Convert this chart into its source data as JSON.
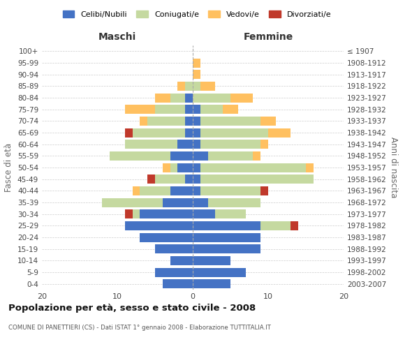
{
  "age_groups": [
    "0-4",
    "5-9",
    "10-14",
    "15-19",
    "20-24",
    "25-29",
    "30-34",
    "35-39",
    "40-44",
    "45-49",
    "50-54",
    "55-59",
    "60-64",
    "65-69",
    "70-74",
    "75-79",
    "80-84",
    "85-89",
    "90-94",
    "95-99",
    "100+"
  ],
  "birth_years": [
    "2003-2007",
    "1998-2002",
    "1993-1997",
    "1988-1992",
    "1983-1987",
    "1978-1982",
    "1973-1977",
    "1968-1972",
    "1963-1967",
    "1958-1962",
    "1953-1957",
    "1948-1952",
    "1943-1947",
    "1938-1942",
    "1933-1937",
    "1928-1932",
    "1923-1927",
    "1918-1922",
    "1913-1917",
    "1908-1912",
    "≤ 1907"
  ],
  "colors": {
    "celibi": "#4472C4",
    "coniugati": "#c5d9a0",
    "vedovi": "#ffc060",
    "divorziati": "#c0392b"
  },
  "males": {
    "celibi": [
      4,
      5,
      3,
      5,
      7,
      9,
      7,
      4,
      3,
      1,
      2,
      3,
      2,
      1,
      1,
      1,
      1,
      0,
      0,
      0,
      0
    ],
    "coniugati": [
      0,
      0,
      0,
      0,
      0,
      0,
      1,
      8,
      4,
      4,
      1,
      8,
      7,
      7,
      5,
      4,
      2,
      1,
      0,
      0,
      0
    ],
    "vedovi": [
      0,
      0,
      0,
      0,
      0,
      0,
      0,
      0,
      1,
      0,
      1,
      0,
      0,
      0,
      1,
      4,
      2,
      1,
      0,
      0,
      0
    ],
    "divorziati": [
      0,
      0,
      0,
      0,
      0,
      0,
      1,
      0,
      0,
      1,
      0,
      0,
      0,
      1,
      0,
      0,
      0,
      0,
      0,
      0,
      0
    ]
  },
  "females": {
    "nubili": [
      5,
      7,
      5,
      9,
      9,
      9,
      3,
      2,
      1,
      1,
      1,
      2,
      1,
      1,
      1,
      1,
      0,
      0,
      0,
      0,
      0
    ],
    "coniugate": [
      0,
      0,
      0,
      0,
      0,
      4,
      4,
      7,
      8,
      15,
      14,
      6,
      8,
      9,
      8,
      3,
      5,
      1,
      0,
      0,
      0
    ],
    "vedove": [
      0,
      0,
      0,
      0,
      0,
      0,
      0,
      0,
      0,
      0,
      1,
      1,
      1,
      3,
      2,
      2,
      3,
      2,
      1,
      1,
      0
    ],
    "divorziate": [
      0,
      0,
      0,
      0,
      0,
      1,
      0,
      0,
      1,
      0,
      0,
      0,
      0,
      0,
      0,
      0,
      0,
      0,
      0,
      0,
      0
    ]
  },
  "title": "Popolazione per età, sesso e stato civile - 2008",
  "subtitle": "COMUNE DI PANETTIERI (CS) - Dati ISTAT 1° gennaio 2008 - Elaborazione TUTTITALIA.IT",
  "xlabel_left": "Maschi",
  "xlabel_right": "Femmine",
  "ylabel_left": "Fasce di età",
  "ylabel_right": "Anni di nascita",
  "xlim": 20,
  "legend_labels": [
    "Celibi/Nubili",
    "Coniugati/e",
    "Vedovi/e",
    "Divorziati/e"
  ],
  "background_color": "#ffffff",
  "grid_color": "#cccccc"
}
